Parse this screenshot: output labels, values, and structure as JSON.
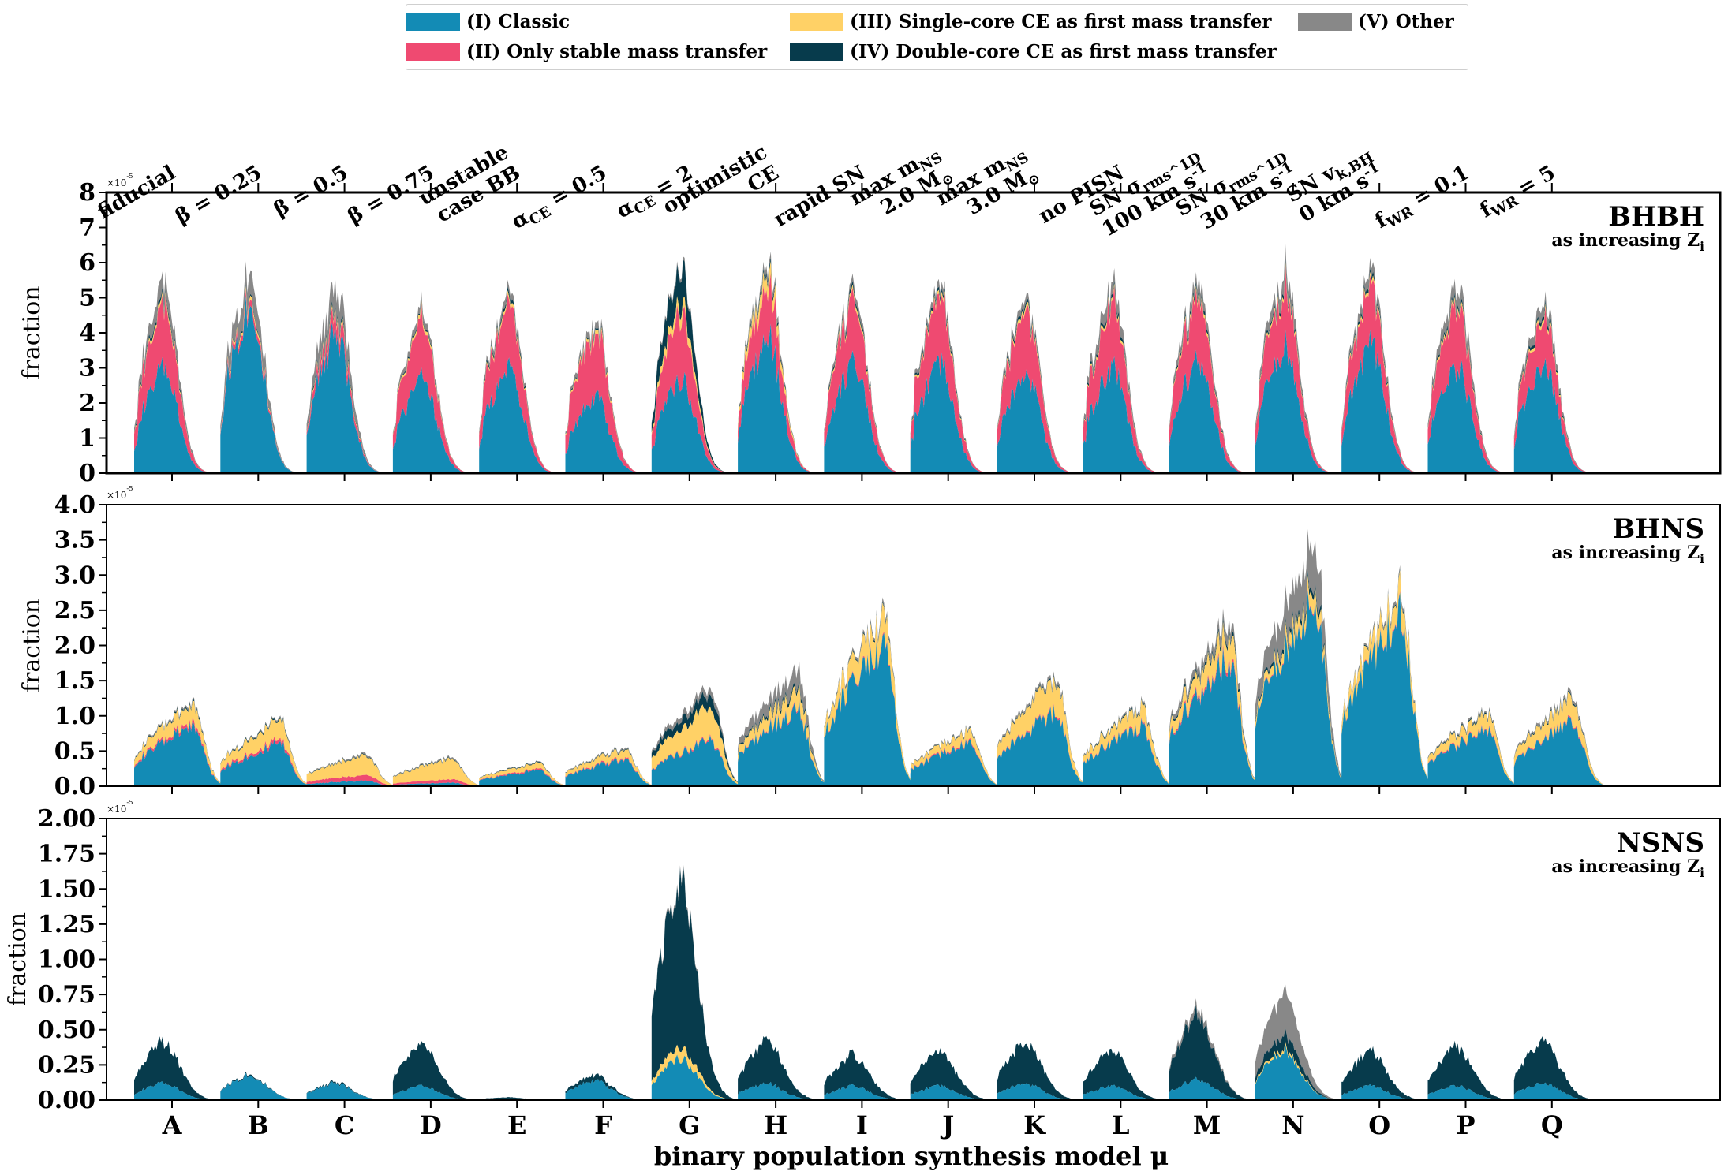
{
  "colors": {
    "classic": "#138bb5",
    "stable": "#ef4a71",
    "single": "#ffd166",
    "double": "#073b4c",
    "other": "#888888"
  },
  "legend": [
    {
      "key": "classic",
      "label": "(I) Classic"
    },
    {
      "key": "stable",
      "label": "(II) Only stable mass transfer"
    },
    {
      "key": "single",
      "label": "(III) Single-core CE as first mass transfer"
    },
    {
      "key": "double",
      "label": "(IV) Double-core CE as first mass transfer"
    },
    {
      "key": "other",
      "label": "(V) Other"
    }
  ],
  "top_labels": [
    [
      "fiducial"
    ],
    [
      "β = 0.25"
    ],
    [
      "β = 0.5"
    ],
    [
      "β = 0.75"
    ],
    [
      "unstable",
      "case BB"
    ],
    [
      "α_CE = 0.5"
    ],
    [
      "α_CE = 2"
    ],
    [
      "optimistic",
      "CE"
    ],
    [
      "rapid SN"
    ],
    [
      "max m_NS",
      "2.0 M_⊙"
    ],
    [
      "max m_NS",
      "3.0 M_⊙"
    ],
    [
      "no PISN"
    ],
    [
      "SN σ_rms^1D",
      "100 km s^-1"
    ],
    [
      "SN σ_rms^1D",
      "30 km s^-1"
    ],
    [
      "SN v_k,BH",
      "0 km s^-1"
    ],
    [
      "f_WR = 0.1"
    ],
    [
      "f_WR = 5"
    ]
  ],
  "chart_data": {
    "type": "area",
    "xlabel": "binary population synthesis model μ",
    "categories": [
      "A",
      "B",
      "C",
      "D",
      "E",
      "F",
      "G",
      "H",
      "I",
      "J",
      "K",
      "L",
      "M",
      "N",
      "O",
      "P",
      "Q"
    ],
    "stack_order": [
      "classic",
      "stable",
      "single",
      "double",
      "other"
    ],
    "panels": [
      {
        "name": "BHBH",
        "subtitle": "as increasing Z_i",
        "ylabel": "fraction",
        "multiplier": "×10^-5",
        "ylim": [
          0,
          8
        ],
        "yticks": [
          "0",
          "1",
          "2",
          "3",
          "4",
          "5",
          "6",
          "7",
          "8"
        ],
        "models": [
          {
            "classic": 3.0,
            "stable": 1.8,
            "single": 0.1,
            "double": 0.1,
            "other": 0.5
          },
          {
            "classic": 4.9,
            "stable": 0.2,
            "single": 0.1,
            "double": 0.05,
            "other": 0.7
          },
          {
            "classic": 4.0,
            "stable": 0.4,
            "single": 0.1,
            "double": 0.1,
            "other": 0.7
          },
          {
            "classic": 2.7,
            "stable": 1.6,
            "single": 0.1,
            "double": 0.05,
            "other": 0.2
          },
          {
            "classic": 3.0,
            "stable": 1.8,
            "single": 0.1,
            "double": 0.1,
            "other": 0.2
          },
          {
            "classic": 2.2,
            "stable": 1.9,
            "single": 0.1,
            "double": 0.05,
            "other": 0.2
          },
          {
            "classic": 2.7,
            "stable": 1.9,
            "single": 0.3,
            "double": 1.0,
            "other": 0.1
          },
          {
            "classic": 3.9,
            "stable": 1.5,
            "single": 0.4,
            "double": 0.1,
            "other": 0.2
          },
          {
            "classic": 3.1,
            "stable": 1.8,
            "single": 0.1,
            "double": 0.1,
            "other": 0.2
          },
          {
            "classic": 3.1,
            "stable": 1.8,
            "single": 0.1,
            "double": 0.1,
            "other": 0.2
          },
          {
            "classic": 2.9,
            "stable": 1.8,
            "single": 0.1,
            "double": 0.1,
            "other": 0.2
          },
          {
            "classic": 3.0,
            "stable": 1.8,
            "single": 0.1,
            "double": 0.1,
            "other": 0.4
          },
          {
            "classic": 3.3,
            "stable": 1.8,
            "single": 0.1,
            "double": 0.1,
            "other": 0.3
          },
          {
            "classic": 3.6,
            "stable": 1.7,
            "single": 0.1,
            "double": 0.1,
            "other": 0.4
          },
          {
            "classic": 3.6,
            "stable": 1.6,
            "single": 0.1,
            "double": 0.1,
            "other": 0.3
          },
          {
            "classic": 3.0,
            "stable": 1.8,
            "single": 0.1,
            "double": 0.1,
            "other": 0.4
          },
          {
            "classic": 3.1,
            "stable": 1.3,
            "single": 0.1,
            "double": 0.1,
            "other": 0.3
          }
        ]
      },
      {
        "name": "BHNS",
        "subtitle": "as increasing Z_i",
        "ylabel": "fraction",
        "multiplier": "×10^-5",
        "ylim": [
          0,
          4
        ],
        "yticks": [
          "0.0",
          "0.5",
          "1.0",
          "1.5",
          "2.0",
          "2.5",
          "3.0",
          "3.5",
          "4.0"
        ],
        "models": [
          {
            "classic": 0.85,
            "stable": 0.05,
            "single": 0.25,
            "double": 0.02,
            "other": 0.03
          },
          {
            "classic": 0.6,
            "stable": 0.05,
            "single": 0.28,
            "double": 0.02,
            "other": 0.02
          },
          {
            "classic": 0.08,
            "stable": 0.08,
            "single": 0.28,
            "double": 0.01,
            "other": 0.02
          },
          {
            "classic": 0.05,
            "stable": 0.05,
            "single": 0.28,
            "double": 0.01,
            "other": 0.02
          },
          {
            "classic": 0.22,
            "stable": 0.02,
            "single": 0.08,
            "double": 0.01,
            "other": 0.01
          },
          {
            "classic": 0.38,
            "stable": 0.02,
            "single": 0.12,
            "double": 0.01,
            "other": 0.02
          },
          {
            "classic": 0.65,
            "stable": 0.02,
            "single": 0.45,
            "double": 0.18,
            "other": 0.1
          },
          {
            "classic": 1.1,
            "stable": 0.02,
            "single": 0.25,
            "double": 0.05,
            "other": 0.25
          },
          {
            "classic": 2.0,
            "stable": 0.02,
            "single": 0.4,
            "double": 0.02,
            "other": 0.05
          },
          {
            "classic": 0.6,
            "stable": 0.02,
            "single": 0.15,
            "double": 0.01,
            "other": 0.02
          },
          {
            "classic": 1.05,
            "stable": 0.02,
            "single": 0.43,
            "double": 0.02,
            "other": 0.05
          },
          {
            "classic": 0.85,
            "stable": 0.02,
            "single": 0.25,
            "double": 0.02,
            "other": 0.03
          },
          {
            "classic": 1.8,
            "stable": 0.05,
            "single": 0.35,
            "double": 0.05,
            "other": 0.15
          },
          {
            "classic": 2.6,
            "stable": 0.02,
            "single": 0.2,
            "double": 0.08,
            "other": 0.6
          },
          {
            "classic": 2.4,
            "stable": 0.02,
            "single": 0.3,
            "double": 0.02,
            "other": 0.05
          },
          {
            "classic": 0.8,
            "stable": 0.02,
            "single": 0.2,
            "double": 0.02,
            "other": 0.03
          },
          {
            "classic": 0.9,
            "stable": 0.02,
            "single": 0.3,
            "double": 0.02,
            "other": 0.05
          }
        ]
      },
      {
        "name": "NSNS",
        "subtitle": "as increasing Z_i",
        "ylabel": "fraction",
        "multiplier": "×10^-5",
        "ylim": [
          0,
          2
        ],
        "yticks": [
          "0.00",
          "0.25",
          "0.50",
          "0.75",
          "1.00",
          "1.25",
          "1.50",
          "1.75",
          "2.00"
        ],
        "models": [
          {
            "classic": 0.12,
            "stable": 0.0,
            "single": 0.0,
            "double": 0.3,
            "other": 0.0
          },
          {
            "classic": 0.18,
            "stable": 0.0,
            "single": 0.0,
            "double": 0.01,
            "other": 0.0
          },
          {
            "classic": 0.12,
            "stable": 0.0,
            "single": 0.0,
            "double": 0.01,
            "other": 0.0
          },
          {
            "classic": 0.1,
            "stable": 0.0,
            "single": 0.0,
            "double": 0.3,
            "other": 0.0
          },
          {
            "classic": 0.01,
            "stable": 0.0,
            "single": 0.0,
            "double": 0.01,
            "other": 0.0
          },
          {
            "classic": 0.14,
            "stable": 0.0,
            "single": 0.0,
            "double": 0.04,
            "other": 0.0
          },
          {
            "classic": 0.3,
            "stable": 0.0,
            "single": 0.08,
            "double": 1.2,
            "other": 0.02
          },
          {
            "classic": 0.12,
            "stable": 0.0,
            "single": 0.0,
            "double": 0.3,
            "other": 0.0
          },
          {
            "classic": 0.1,
            "stable": 0.0,
            "single": 0.0,
            "double": 0.22,
            "other": 0.0
          },
          {
            "classic": 0.1,
            "stable": 0.0,
            "single": 0.0,
            "double": 0.25,
            "other": 0.0
          },
          {
            "classic": 0.12,
            "stable": 0.0,
            "single": 0.0,
            "double": 0.3,
            "other": 0.0
          },
          {
            "classic": 0.1,
            "stable": 0.0,
            "single": 0.0,
            "double": 0.25,
            "other": 0.0
          },
          {
            "classic": 0.15,
            "stable": 0.0,
            "single": 0.0,
            "double": 0.45,
            "other": 0.05
          },
          {
            "classic": 0.35,
            "stable": 0.0,
            "single": 0.02,
            "double": 0.1,
            "other": 0.3
          },
          {
            "classic": 0.1,
            "stable": 0.0,
            "single": 0.0,
            "double": 0.25,
            "other": 0.0
          },
          {
            "classic": 0.1,
            "stable": 0.0,
            "single": 0.0,
            "double": 0.28,
            "other": 0.0
          },
          {
            "classic": 0.12,
            "stable": 0.0,
            "single": 0.0,
            "double": 0.3,
            "other": 0.0
          }
        ]
      }
    ]
  }
}
